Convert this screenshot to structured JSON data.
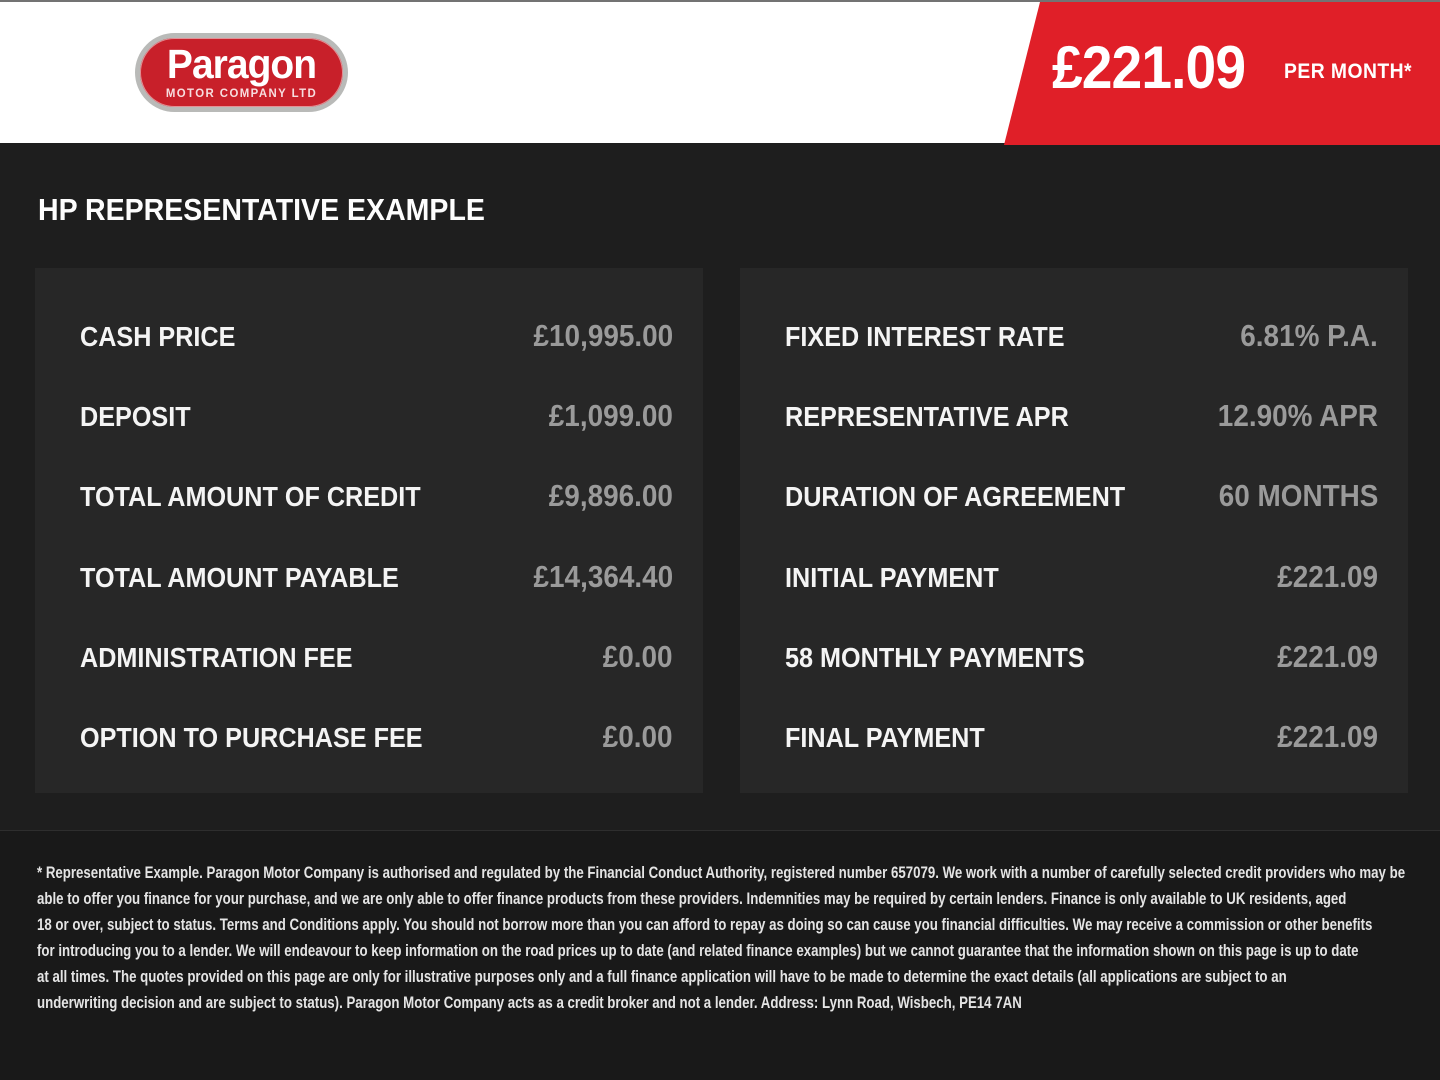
{
  "header": {
    "logo": {
      "name": "Paragon",
      "subtitle": "MOTOR COMPANY LTD"
    },
    "price_banner": {
      "amount": "£221.09",
      "period": "PER MONTH*"
    }
  },
  "title": "HP REPRESENTATIVE EXAMPLE",
  "panels": {
    "left": {
      "rows": [
        {
          "label": "CASH PRICE",
          "value": "£10,995.00"
        },
        {
          "label": "DEPOSIT",
          "value": "£1,099.00"
        },
        {
          "label": "TOTAL AMOUNT OF CREDIT",
          "value": "£9,896.00"
        },
        {
          "label": "TOTAL AMOUNT PAYABLE",
          "value": "£14,364.40"
        },
        {
          "label": "ADMINISTRATION FEE",
          "value": "£0.00"
        },
        {
          "label": "OPTION TO PURCHASE FEE",
          "value": "£0.00"
        }
      ]
    },
    "right": {
      "rows": [
        {
          "label": "FIXED INTEREST RATE",
          "value": "6.81% P.A."
        },
        {
          "label": "REPRESENTATIVE APR",
          "value": "12.90% APR"
        },
        {
          "label": "DURATION OF AGREEMENT",
          "value": "60 MONTHS"
        },
        {
          "label": "INITIAL PAYMENT",
          "value": "£221.09"
        },
        {
          "label": "58 MONTHLY PAYMENTS",
          "value": "£221.09"
        },
        {
          "label": "FINAL PAYMENT",
          "value": "£221.09"
        }
      ]
    }
  },
  "footer": {
    "lines": [
      "* Representative Example. Paragon Motor Company is authorised and regulated by the Financial Conduct Authority, registered number 657079. We work with a number of carefully selected credit providers who may be",
      "able to offer you finance for your purchase, and we are only able to offer finance products from these providers. Indemnities may be required by certain lenders. Finance is only available to UK residents, aged",
      "18 or over, subject to status. Terms and Conditions apply. You should not borrow more than you can afford to repay as doing so can cause you financial difficulties. We may receive a commission or other benefits",
      "for introducing you to a lender. We will endeavour to keep information on the road prices up to date (and related finance examples) but we cannot guarantee that the information shown on this page is up to date",
      "at all times. The quotes provided on this page are only for illustrative purposes only and a full finance application will have to be made to determine the exact details (all applications are subject to an",
      "underwriting decision and are subject to status). Paragon Motor Company acts as a credit broker and not a lender. Address: Lynn Road, Wisbech, PE14 7AN"
    ]
  },
  "colors": {
    "banner_red": "#e01f28",
    "logo_red": "#c8202a",
    "logo_ring_silver": "#b9bab8",
    "main_background": "#1e1e1e",
    "panel_background": "#272727",
    "footer_background": "#191919",
    "label_white": "#f4f4f4",
    "value_gray": "#9a9a9a"
  }
}
